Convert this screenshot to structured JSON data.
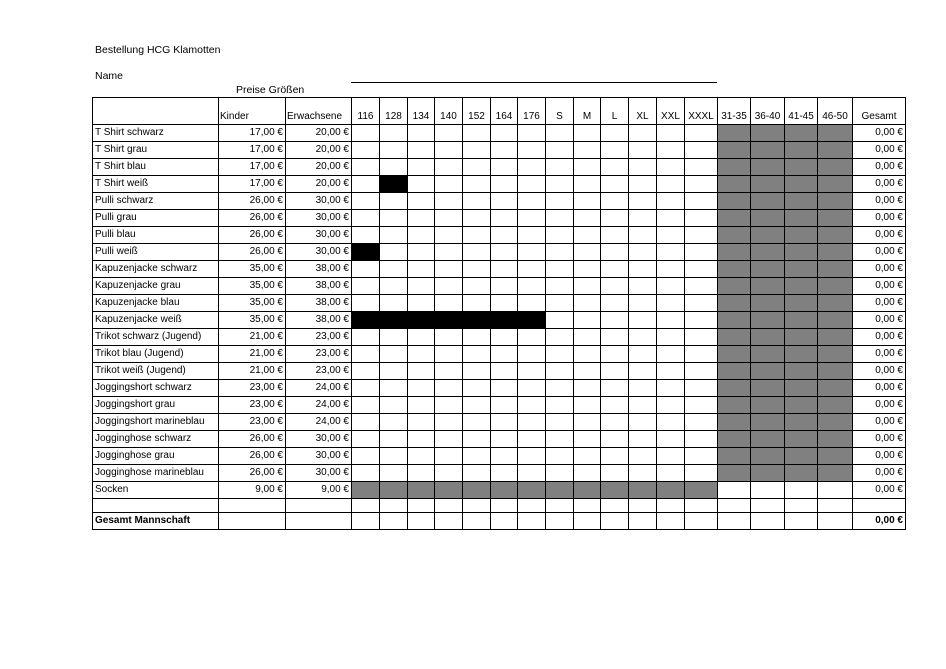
{
  "title": "Bestellung HCG Klamotten",
  "name_label": "Name",
  "header_caption": "Preise Größen",
  "columns": {
    "item": "",
    "kinder": "Kinder",
    "erwachsene": "Erwachsene",
    "sizes": [
      "116",
      "128",
      "134",
      "140",
      "152",
      "164",
      "176",
      "S",
      "M",
      "L",
      "XL",
      "XXL",
      "XXXL",
      "31-35",
      "36-40",
      "41-45",
      "46-50"
    ],
    "gesamt": "Gesamt"
  },
  "colors": {
    "grey": "#808080",
    "black": "#000000"
  },
  "rows": [
    {
      "name": "T Shirt schwarz",
      "kinder": "17,00 €",
      "erw": "20,00 €",
      "gesamt": "0,00 €",
      "black": []
    },
    {
      "name": "T Shirt grau",
      "kinder": "17,00 €",
      "erw": "20,00 €",
      "gesamt": "0,00 €",
      "black": []
    },
    {
      "name": "T Shirt blau",
      "kinder": "17,00 €",
      "erw": "20,00 €",
      "gesamt": "0,00 €",
      "black": []
    },
    {
      "name": "T Shirt weiß",
      "kinder": "17,00 €",
      "erw": "20,00 €",
      "gesamt": "0,00 €",
      "black": [
        "128"
      ]
    },
    {
      "name": "Pulli schwarz",
      "kinder": "26,00 €",
      "erw": "30,00 €",
      "gesamt": "0,00 €",
      "black": []
    },
    {
      "name": "Pulli grau",
      "kinder": "26,00 €",
      "erw": "30,00 €",
      "gesamt": "0,00 €",
      "black": []
    },
    {
      "name": "Pulli blau",
      "kinder": "26,00 €",
      "erw": "30,00 €",
      "gesamt": "0,00 €",
      "black": []
    },
    {
      "name": "Pulli weiß",
      "kinder": "26,00 €",
      "erw": "30,00 €",
      "gesamt": "0,00 €",
      "black": [
        "116"
      ]
    },
    {
      "name": "Kapuzenjacke schwarz",
      "kinder": "35,00 €",
      "erw": "38,00 €",
      "gesamt": "0,00 €",
      "black": []
    },
    {
      "name": "Kapuzenjacke grau",
      "kinder": "35,00 €",
      "erw": "38,00 €",
      "gesamt": "0,00 €",
      "black": []
    },
    {
      "name": "Kapuzenjacke blau",
      "kinder": "35,00 €",
      "erw": "38,00 €",
      "gesamt": "0,00 €",
      "black": []
    },
    {
      "name": "Kapuzenjacke weiß",
      "kinder": "35,00 €",
      "erw": "38,00 €",
      "gesamt": "0,00 €",
      "black": [
        "116",
        "128",
        "134",
        "140",
        "152",
        "164",
        "176"
      ]
    },
    {
      "name": "Trikot schwarz (Jugend)",
      "kinder": "21,00 €",
      "erw": "23,00 €",
      "gesamt": "0,00 €",
      "black": []
    },
    {
      "name": "Trikot blau (Jugend)",
      "kinder": "21,00 €",
      "erw": "23,00 €",
      "gesamt": "0,00 €",
      "black": []
    },
    {
      "name": "Trikot weiß (Jugend)",
      "kinder": "21,00 €",
      "erw": "23,00 €",
      "gesamt": "0,00 €",
      "black": []
    },
    {
      "name": "Joggingshort schwarz",
      "kinder": "23,00 €",
      "erw": "24,00 €",
      "gesamt": "0,00 €",
      "black": []
    },
    {
      "name": "Joggingshort grau",
      "kinder": "23,00 €",
      "erw": "24,00 €",
      "gesamt": "0,00 €",
      "black": []
    },
    {
      "name": "Joggingshort marineblau",
      "kinder": "23,00 €",
      "erw": "24,00 €",
      "gesamt": "0,00 €",
      "black": []
    },
    {
      "name": "Jogginghose schwarz",
      "kinder": "26,00 €",
      "erw": "30,00 €",
      "gesamt": "0,00 €",
      "black": []
    },
    {
      "name": "Jogginghose grau",
      "kinder": "26,00 €",
      "erw": "30,00 €",
      "gesamt": "0,00 €",
      "black": []
    },
    {
      "name": "Jogginghose marineblau",
      "kinder": "26,00 €",
      "erw": "30,00 €",
      "gesamt": "0,00 €",
      "black": []
    },
    {
      "name": "Socken",
      "kinder": "9,00 €",
      "erw": "9,00 €",
      "gesamt": "0,00 €",
      "black": [],
      "socks": true
    }
  ],
  "total": {
    "label": "Gesamt Mannschaft",
    "value": "0,00 €"
  }
}
